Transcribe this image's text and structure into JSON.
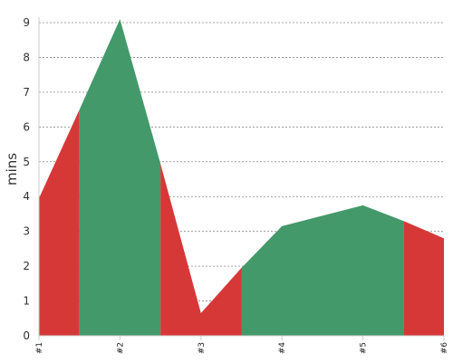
{
  "chart_data": {
    "type": "area",
    "x": [
      "#1",
      "#2",
      "#3",
      "#4",
      "#5",
      "#6"
    ],
    "ylabel": "mins",
    "xlabel": "",
    "ylim": [
      0,
      9
    ],
    "yticks": [
      0,
      1,
      2,
      3,
      4,
      5,
      6,
      7,
      8,
      9
    ],
    "grid": true,
    "points": [
      [
        1,
        3.95
      ],
      [
        1.5,
        6.5
      ],
      [
        2,
        9.1
      ],
      [
        2.5,
        4.95
      ],
      [
        3,
        0.65
      ],
      [
        3.5,
        1.95
      ],
      [
        4,
        3.15
      ],
      [
        5,
        3.75
      ],
      [
        5.5,
        3.3
      ],
      [
        6,
        2.8
      ]
    ],
    "segments": [
      {
        "x_start": 1,
        "x_end": 1.5,
        "color": "red"
      },
      {
        "x_start": 1.5,
        "x_end": 2.5,
        "color": "green"
      },
      {
        "x_start": 2.5,
        "x_end": 3.5,
        "color": "red"
      },
      {
        "x_start": 3.5,
        "x_end": 5.5,
        "color": "green"
      },
      {
        "x_start": 5.5,
        "x_end": 6,
        "color": "red"
      }
    ],
    "colors": {
      "red": "#d63838",
      "green": "#44996a"
    }
  }
}
